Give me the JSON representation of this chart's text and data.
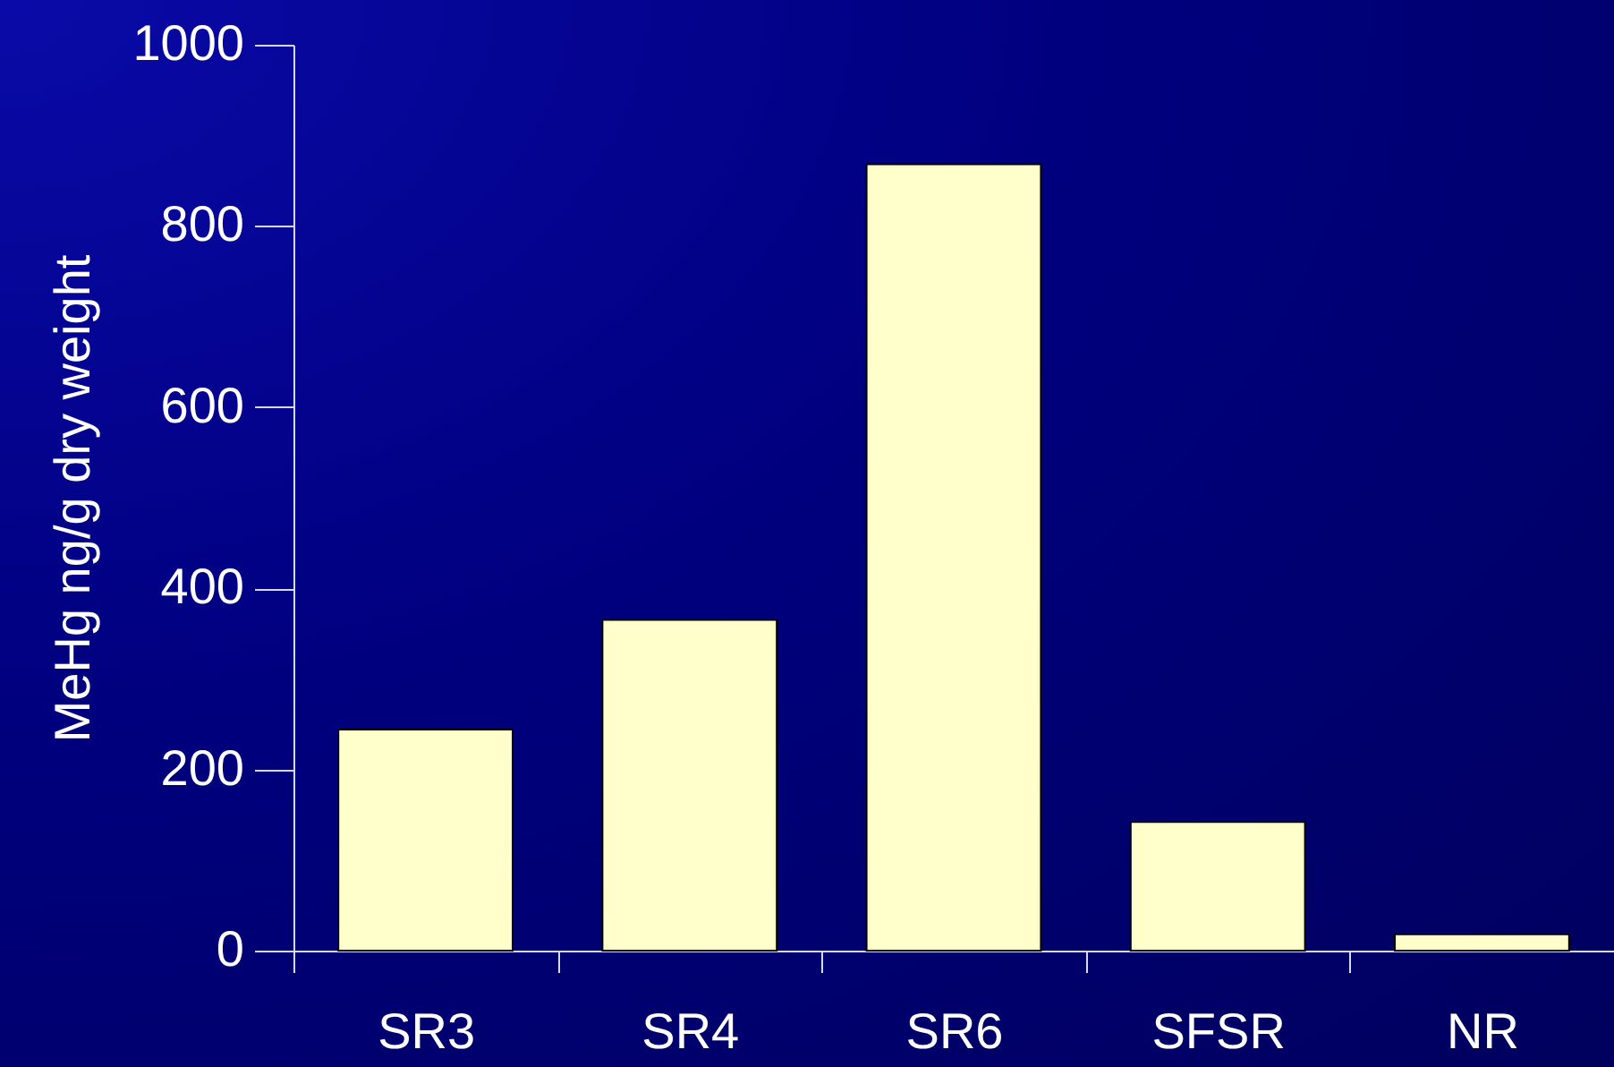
{
  "chart_data": {
    "type": "bar",
    "ylabel": "MeHg ng/g dry weight",
    "categories": [
      "SR3",
      "SR4",
      "SR6",
      "SFSR",
      "NR"
    ],
    "values": [
      244,
      365,
      868,
      142,
      18
    ],
    "color": "#ffffcc",
    "ylim": [
      0,
      1000
    ],
    "yticks": [
      0,
      200,
      400,
      600,
      800,
      1000
    ],
    "grid": false
  }
}
